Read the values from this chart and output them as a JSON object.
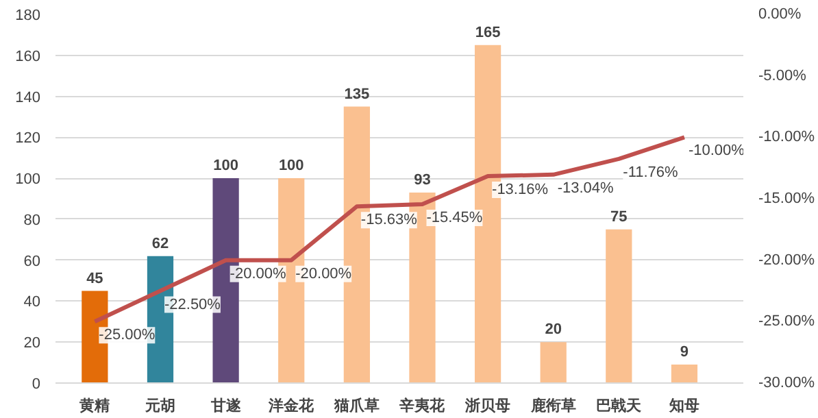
{
  "chart_data": {
    "type": "bar",
    "categories": [
      "黄精",
      "元胡",
      "甘遂",
      "洋金花",
      "猫爪草",
      "辛夷花",
      "浙贝母",
      "鹿衔草",
      "巴戟天",
      "知母"
    ],
    "series": [
      {
        "colors": [
          "#e36c09",
          "#31859c",
          "#5f497a",
          "#fac090",
          "#fac090",
          "#fac090",
          "#fac090",
          "#fac090",
          "#fac090",
          "#fac090"
        ],
        "values": [
          45,
          62,
          100,
          100,
          135,
          93,
          165,
          20,
          75,
          9
        ],
        "value_labels": [
          "45",
          "62",
          "100",
          "100",
          "135",
          "93",
          "165",
          "20",
          "75",
          "9"
        ]
      },
      {
        "type": "line",
        "axis": "y2",
        "color": "#c0504d",
        "values": [
          -25.0,
          -22.5,
          -20.0,
          -20.0,
          -15.63,
          -15.45,
          -13.16,
          -13.04,
          -11.76,
          -10.0
        ],
        "value_labels": [
          "-25.00%",
          "-22.50%",
          "-20.00%",
          "-20.00%",
          "-15.63%",
          "-15.45%",
          "-13.16%",
          "-13.04%",
          "-11.76%",
          "-10.00%"
        ]
      }
    ],
    "ylim": [
      0,
      180
    ],
    "yticks": [
      0,
      20,
      40,
      60,
      80,
      100,
      120,
      140,
      160,
      180
    ],
    "y2lim": [
      -30,
      0
    ],
    "y2ticks": [
      {
        "value": -30,
        "label": "-30.00%"
      },
      {
        "value": -25,
        "label": "-25.00%"
      },
      {
        "value": -20,
        "label": "-20.00%"
      },
      {
        "value": -15,
        "label": "-15.00%"
      },
      {
        "value": -10,
        "label": "-10.00%"
      },
      {
        "value": -5,
        "label": "-5.00%"
      },
      {
        "value": 0,
        "label": "0.00%"
      }
    ],
    "grid": "y"
  }
}
